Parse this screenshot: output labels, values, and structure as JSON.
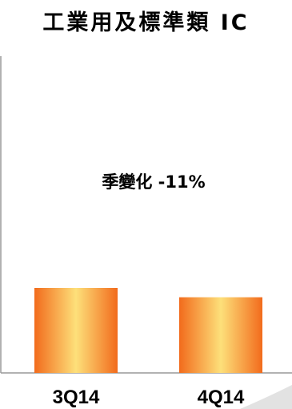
{
  "chart_data": {
    "type": "bar",
    "title": "工業用及標準類 IC",
    "categories": [
      "3Q14",
      "4Q14"
    ],
    "values": [
      100,
      89
    ],
    "annotation": "季變化 -11%",
    "xlabel": "",
    "ylabel": "",
    "ylim": [
      0,
      100
    ],
    "grid": false,
    "legend": "none",
    "colors": {
      "bar_edge": "#f26b1c",
      "bar_center": "#fde07a",
      "axis": "#999999"
    }
  }
}
